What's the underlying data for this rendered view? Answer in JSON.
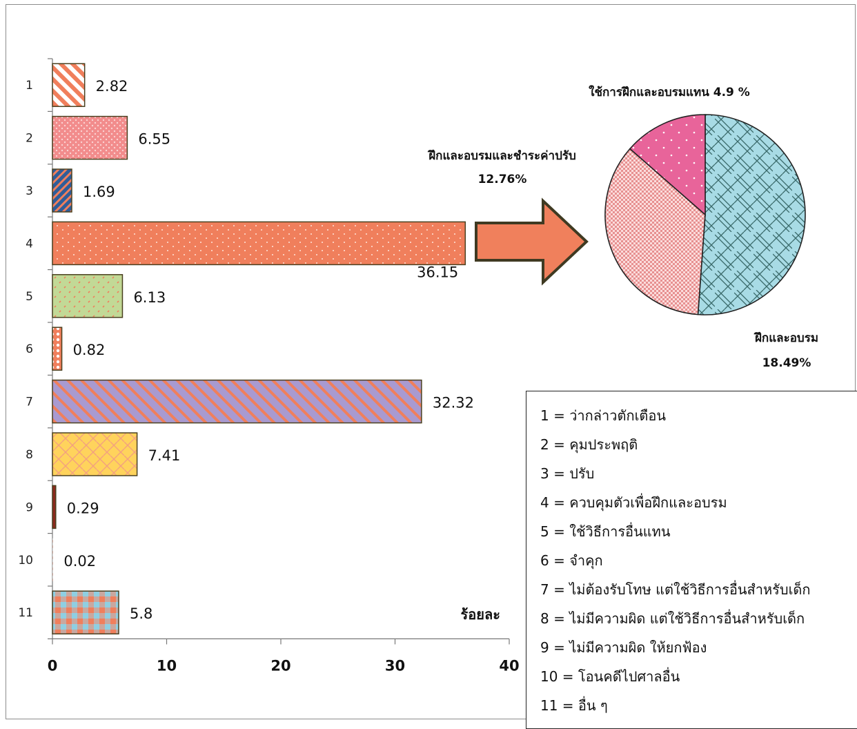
{
  "chart_data": [
    {
      "type": "bar",
      "orientation": "horizontal",
      "categories": [
        "1",
        "2",
        "3",
        "4",
        "5",
        "6",
        "7",
        "8",
        "9",
        "10",
        "11"
      ],
      "values": [
        2.82,
        6.55,
        1.69,
        36.15,
        6.13,
        0.82,
        32.32,
        7.41,
        0.29,
        0.02,
        5.8
      ],
      "value_labels": [
        "2.82",
        "6.55",
        "1.69",
        "36.15",
        "6.13",
        "0.82",
        "32.32",
        "7.41",
        "0.29",
        "0.02",
        "5.8"
      ],
      "xlabel": "ร้อยละ",
      "xlim": [
        0,
        40
      ],
      "xticks": [
        "0",
        "10",
        "20",
        "30",
        "40"
      ],
      "grid": false,
      "colors": [
        "#f07f5c",
        "#f28c8c",
        "#3b6aa8",
        "#f07f5c",
        "#b9d68a",
        "#f07f5c",
        "#a99ad0",
        "#ffd35c",
        "#8b2a1d",
        "#f07f5c",
        "#c8a8a0"
      ]
    },
    {
      "type": "pie",
      "labels": [
        "ใช้การฝึกและอบรมแทน 4.9 %",
        "ฝึกและอบรมและชำระค่าปรับ",
        "ฝึกและอบรม"
      ],
      "values": [
        4.9,
        12.76,
        18.49
      ],
      "value_labels": [
        "",
        "12.76%",
        "18.49%"
      ],
      "colors": [
        "#e8649a",
        "#f4a7a8",
        "#a8dbe5"
      ]
    }
  ],
  "legend": {
    "items": [
      "1 = ว่ากล่าวตักเตือน",
      "2 = คุมประพฤติ",
      "3 = ปรับ",
      "4 = ควบคุมตัวเพื่อฝึกและอบรม",
      "5 = ใช้วิธีการอื่นแทน",
      "6 = จำคุก",
      "7 = ไม่ต้องรับโทษ แต่ใช้วิธีการอื่นสำหรับเด็ก",
      "8 = ไม่มีความผิด แต่ใช้วิธีการอื่นสำหรับเด็ก",
      "9 = ไม่มีความผิด ให้ยกฟ้อง",
      "10 = โอนคดีไปศาลอื่น",
      "11 = อื่น ๆ"
    ]
  },
  "arrow_color": "#f0805c"
}
